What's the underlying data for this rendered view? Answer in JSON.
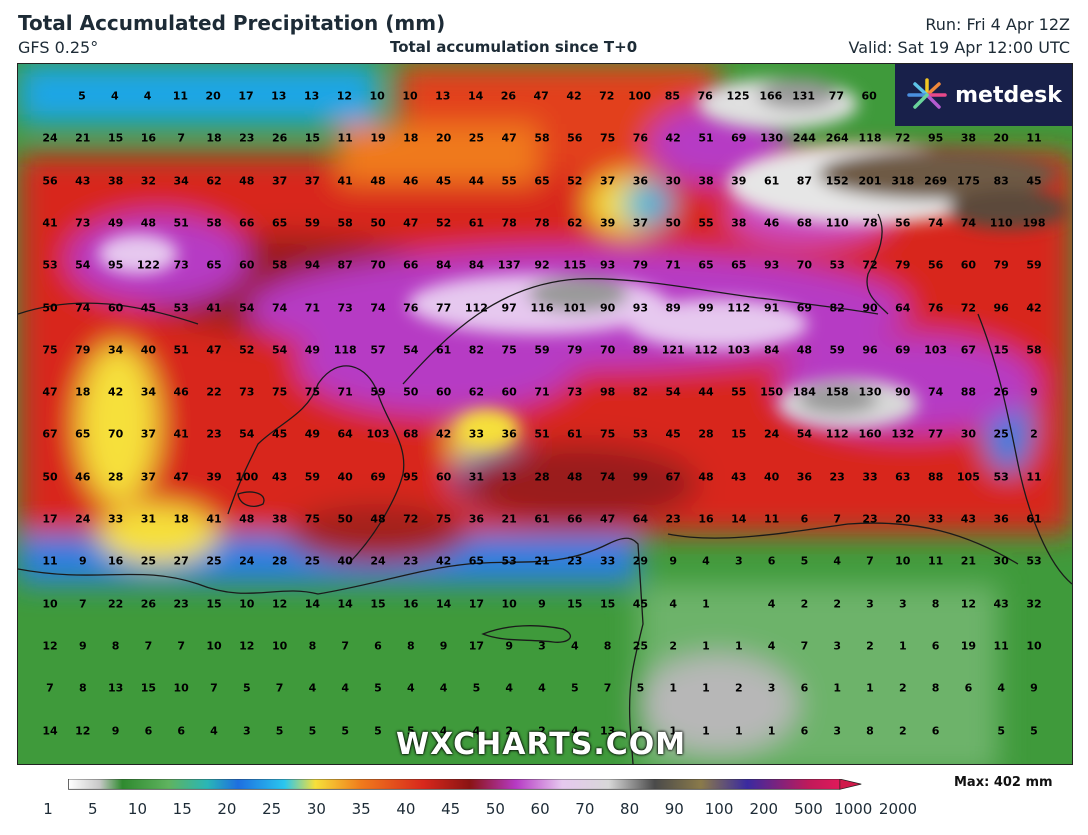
{
  "header": {
    "title": "Total Accumulated Precipitation (mm)",
    "model": "GFS 0.25°",
    "subtitle": "Total accumulation since T+0",
    "run": "Run: Fri 4 Apr 12Z",
    "valid": "Valid: Sat 19 Apr 12:00 UTC"
  },
  "logo": {
    "text": "metdesk"
  },
  "watermark": "WXCHARTS.COM",
  "grid_values": [
    [
      "5",
      "4",
      "4",
      "11",
      "20",
      "17",
      "13",
      "13",
      "12",
      "10",
      "10",
      "13",
      "14",
      "26",
      "47",
      "42",
      "72",
      "100",
      "85",
      "76",
      "125",
      "166",
      "131",
      "77",
      "60",
      "",
      ""
    ],
    [
      "24",
      "21",
      "15",
      "16",
      "7",
      "18",
      "23",
      "26",
      "15",
      "11",
      "19",
      "18",
      "20",
      "25",
      "47",
      "58",
      "56",
      "75",
      "76",
      "42",
      "51",
      "69",
      "130",
      "244",
      "264",
      "118",
      "72",
      "95",
      "38",
      "20",
      "11"
    ],
    [
      "56",
      "43",
      "38",
      "32",
      "34",
      "62",
      "48",
      "37",
      "37",
      "41",
      "48",
      "46",
      "45",
      "44",
      "55",
      "65",
      "52",
      "37",
      "36",
      "30",
      "38",
      "39",
      "61",
      "87",
      "152",
      "201",
      "318",
      "269",
      "175",
      "83",
      "45"
    ],
    [
      "41",
      "73",
      "49",
      "48",
      "51",
      "58",
      "66",
      "65",
      "59",
      "58",
      "50",
      "47",
      "52",
      "61",
      "78",
      "78",
      "62",
      "39",
      "37",
      "50",
      "55",
      "38",
      "46",
      "68",
      "110",
      "78",
      "56",
      "74",
      "74",
      "110",
      "198"
    ],
    [
      "53",
      "54",
      "95",
      "122",
      "73",
      "65",
      "60",
      "58",
      "94",
      "87",
      "70",
      "66",
      "84",
      "84",
      "137",
      "92",
      "115",
      "93",
      "79",
      "71",
      "65",
      "65",
      "93",
      "70",
      "53",
      "72",
      "79",
      "56",
      "60",
      "79",
      "59"
    ],
    [
      "50",
      "74",
      "60",
      "45",
      "53",
      "41",
      "54",
      "74",
      "71",
      "73",
      "74",
      "76",
      "77",
      "112",
      "97",
      "116",
      "101",
      "90",
      "93",
      "89",
      "99",
      "112",
      "91",
      "69",
      "82",
      "90",
      "64",
      "76",
      "72",
      "96",
      "42"
    ],
    [
      "75",
      "79",
      "34",
      "40",
      "51",
      "47",
      "52",
      "54",
      "49",
      "118",
      "57",
      "54",
      "61",
      "82",
      "75",
      "59",
      "79",
      "70",
      "89",
      "121",
      "112",
      "103",
      "84",
      "48",
      "59",
      "96",
      "69",
      "103",
      "67",
      "15",
      "58"
    ],
    [
      "47",
      "18",
      "42",
      "34",
      "46",
      "22",
      "73",
      "75",
      "75",
      "71",
      "59",
      "50",
      "60",
      "62",
      "60",
      "71",
      "73",
      "98",
      "82",
      "54",
      "44",
      "55",
      "150",
      "184",
      "158",
      "130",
      "90",
      "74",
      "88",
      "26",
      "9"
    ],
    [
      "67",
      "65",
      "70",
      "37",
      "41",
      "23",
      "54",
      "45",
      "49",
      "64",
      "103",
      "68",
      "42",
      "33",
      "36",
      "51",
      "61",
      "75",
      "53",
      "45",
      "28",
      "15",
      "24",
      "54",
      "112",
      "160",
      "132",
      "77",
      "30",
      "25",
      "2"
    ],
    [
      "50",
      "46",
      "28",
      "37",
      "47",
      "39",
      "100",
      "43",
      "59",
      "40",
      "69",
      "95",
      "60",
      "31",
      "13",
      "28",
      "48",
      "74",
      "99",
      "67",
      "48",
      "43",
      "40",
      "36",
      "23",
      "33",
      "63",
      "88",
      "105",
      "53",
      "11"
    ],
    [
      "17",
      "24",
      "33",
      "31",
      "18",
      "41",
      "48",
      "38",
      "75",
      "50",
      "48",
      "72",
      "75",
      "36",
      "21",
      "61",
      "66",
      "47",
      "64",
      "23",
      "16",
      "14",
      "11",
      "6",
      "7",
      "23",
      "20",
      "33",
      "43",
      "36",
      "61"
    ],
    [
      "11",
      "9",
      "16",
      "25",
      "27",
      "25",
      "24",
      "28",
      "25",
      "40",
      "24",
      "23",
      "42",
      "65",
      "53",
      "21",
      "23",
      "33",
      "29",
      "9",
      "4",
      "3",
      "6",
      "5",
      "4",
      "7",
      "10",
      "11",
      "21",
      "30",
      "53"
    ],
    [
      "10",
      "7",
      "22",
      "26",
      "23",
      "15",
      "10",
      "12",
      "14",
      "14",
      "15",
      "16",
      "14",
      "17",
      "10",
      "9",
      "15",
      "15",
      "45",
      "4",
      "1",
      "",
      "4",
      "2",
      "2",
      "3",
      "3",
      "8",
      "12",
      "43",
      "32"
    ],
    [
      "12",
      "9",
      "8",
      "7",
      "7",
      "10",
      "12",
      "10",
      "8",
      "7",
      "6",
      "8",
      "9",
      "17",
      "9",
      "3",
      "4",
      "8",
      "25",
      "2",
      "1",
      "1",
      "4",
      "7",
      "3",
      "2",
      "1",
      "6",
      "19",
      "11",
      "10"
    ],
    [
      "7",
      "8",
      "13",
      "15",
      "10",
      "7",
      "5",
      "7",
      "4",
      "4",
      "5",
      "4",
      "4",
      "5",
      "4",
      "4",
      "5",
      "7",
      "5",
      "1",
      "1",
      "2",
      "3",
      "6",
      "1",
      "1",
      "2",
      "8",
      "6",
      "4",
      "9"
    ],
    [
      "14",
      "12",
      "9",
      "6",
      "6",
      "4",
      "3",
      "5",
      "5",
      "5",
      "5",
      "5",
      "4",
      "4",
      "2",
      "2",
      "4",
      "13",
      "1",
      "1",
      "1",
      "1",
      "1",
      "6",
      "3",
      "8",
      "2",
      "6",
      "",
      "5",
      "5"
    ]
  ],
  "scale": {
    "ticks": [
      "1",
      "5",
      "10",
      "15",
      "20",
      "25",
      "30",
      "35",
      "40",
      "45",
      "50",
      "60",
      "70",
      "80",
      "90",
      "100",
      "200",
      "500",
      "1000",
      "2000"
    ],
    "max_label": "Max: 402 mm"
  },
  "colors": {
    "header_text": "#1d2b36",
    "logo_bg": "#18204a",
    "green": "#3f9a3b",
    "blue": "#2b7fe0",
    "yellow": "#f6e03a",
    "orange": "#f07a1c",
    "red": "#d8281c",
    "darkred": "#9a1a1a",
    "magenta": "#b63ac4",
    "lavender": "#e6c8ef",
    "gray": "#9a9a9a",
    "brown": "#6e5a45"
  }
}
